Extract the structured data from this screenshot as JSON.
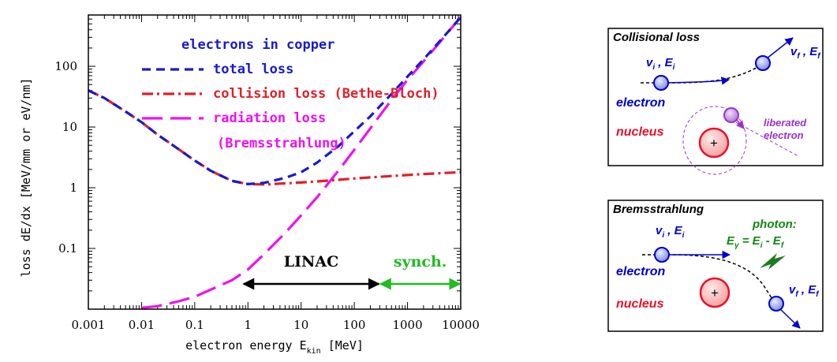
{
  "chart_data": {
    "type": "line",
    "scale": "log-log",
    "legend_title": "electrons in copper",
    "xlabel": "electron energy E",
    "xlabel_sub": "kin",
    "xlabel_unit": " [MeV]",
    "ylabel": "loss dE/dx  [MeV/mm or eV/nm]",
    "xlim": [
      0.001,
      10000
    ],
    "ylim": [
      0.01,
      700
    ],
    "x_ticks": [
      {
        "v": 0.001,
        "label": "0.001"
      },
      {
        "v": 0.01,
        "label": "0.01"
      },
      {
        "v": 0.1,
        "label": "0.1"
      },
      {
        "v": 1,
        "label": "1"
      },
      {
        "v": 10,
        "label": "10"
      },
      {
        "v": 100,
        "label": "100"
      },
      {
        "v": 1000,
        "label": "1000"
      },
      {
        "v": 10000,
        "label": "10000"
      }
    ],
    "y_ticks": [
      {
        "v": 0.1,
        "label": "0.1"
      },
      {
        "v": 1,
        "label": "1"
      },
      {
        "v": 10,
        "label": "10"
      },
      {
        "v": 100,
        "label": "100"
      }
    ],
    "series": [
      {
        "name": "total loss",
        "color": "#1a1acc",
        "dash": "11,7",
        "x": [
          0.001,
          0.002,
          0.005,
          0.01,
          0.02,
          0.05,
          0.1,
          0.2,
          0.5,
          1,
          2,
          5,
          10,
          20,
          50,
          100,
          200,
          500,
          1000,
          2000,
          5000,
          10000
        ],
        "y": [
          40,
          30,
          18,
          12,
          7.5,
          4.3,
          2.8,
          1.9,
          1.3,
          1.15,
          1.2,
          1.45,
          1.8,
          2.6,
          4.8,
          8.5,
          15,
          35,
          68,
          130,
          320,
          640
        ]
      },
      {
        "name": "collision loss (Bethe-Bloch)",
        "color": "#e0202a",
        "dash": "14,5,3,5",
        "x": [
          0.001,
          0.002,
          0.005,
          0.01,
          0.02,
          0.05,
          0.1,
          0.2,
          0.5,
          1,
          2,
          5,
          10,
          20,
          50,
          100,
          200,
          500,
          1000,
          2000,
          5000,
          10000
        ],
        "y": [
          40,
          30,
          18,
          12,
          7.5,
          4.3,
          2.8,
          1.9,
          1.3,
          1.15,
          1.13,
          1.18,
          1.22,
          1.27,
          1.35,
          1.42,
          1.48,
          1.56,
          1.62,
          1.68,
          1.75,
          1.8
        ]
      },
      {
        "name": "radiation loss",
        "color": "#ee11ee",
        "dash": "26,10",
        "x": [
          0.01,
          0.02,
          0.05,
          0.1,
          0.2,
          0.5,
          1,
          2,
          5,
          10,
          20,
          50,
          100,
          200,
          500,
          1000,
          2000,
          5000,
          10000
        ],
        "y": [
          0.0105,
          0.0112,
          0.0135,
          0.016,
          0.021,
          0.03,
          0.045,
          0.08,
          0.18,
          0.35,
          0.7,
          1.9,
          4.2,
          9.5,
          28,
          60,
          120,
          310,
          650
        ]
      }
    ],
    "legend": [
      {
        "label": "total loss",
        "color": "#1a1acc",
        "dash": "11,7"
      },
      {
        "label": "collision loss (Bethe-Bloch)",
        "color": "#e0202a",
        "dash": "14,5,3,5"
      },
      {
        "label": "radiation loss",
        "color": "#ee11ee",
        "dash": "26,10"
      }
    ],
    "legend_extra": "(Bremsstrahlung)",
    "ranges": [
      {
        "label": "LINAC",
        "x1": 0.8,
        "x2": 300,
        "y": 0.03,
        "color": "#000000"
      },
      {
        "label": "synch.",
        "x1": 300,
        "x2": 10000,
        "y": 0.03,
        "color": "#22bb22"
      }
    ]
  },
  "diagram_collisional": {
    "title": "Collisional loss",
    "vi": "v",
    "vi_sub": "i",
    "ei": " , E",
    "ei_sub": "i",
    "vf": "v",
    "vf_sub": "f",
    "ef": " , E",
    "ef_sub": "f",
    "electron": "electron",
    "nucleus": "nucleus",
    "liberated_1": "liberated",
    "liberated_2": "electron",
    "plus": "+"
  },
  "diagram_brems": {
    "title": "Bremsstrahlung",
    "vi": "v",
    "vi_sub": "i",
    "ei": " , E",
    "ei_sub": "i",
    "vf": "v",
    "vf_sub": "f",
    "ef": " , E",
    "ef_sub": "f",
    "photon_1": "photon:",
    "photon_2a": "E",
    "photon_2a_sub": "γ",
    "photon_2b": " = E",
    "photon_2b_sub": "i",
    "photon_2c": " - E",
    "photon_2c_sub": "f",
    "electron": "electron",
    "nucleus": "nucleus",
    "plus": "+"
  },
  "colors": {
    "electron": "#0000cc",
    "nucleus": "#e8102a",
    "liberated": "#9933cc",
    "photon": "#118811"
  }
}
